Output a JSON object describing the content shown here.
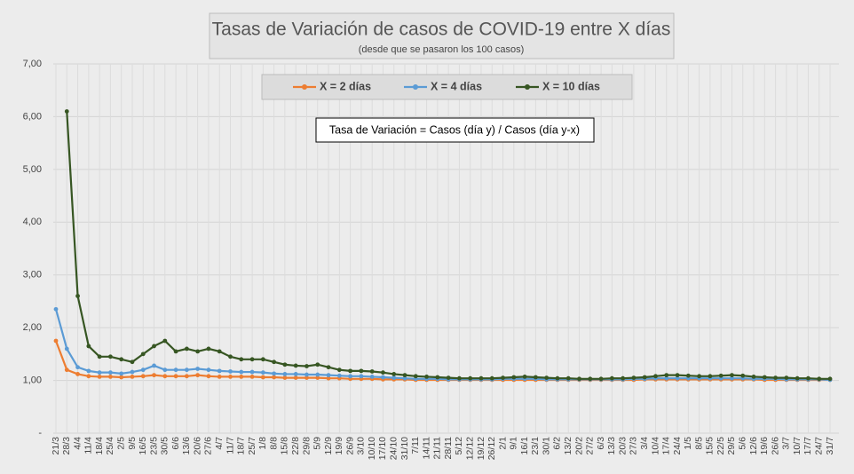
{
  "chart_data": {
    "type": "line",
    "title": "Tasas de Variación de casos de COVID-19 entre X días",
    "subtitle": "(desde que se pasaron los 100 casos)",
    "annotation": "Tasa de Variación = Casos (día y) / Casos (día y-x)",
    "categories": [
      "21/3",
      "28/3",
      "4/4",
      "11/4",
      "18/4",
      "25/4",
      "2/5",
      "9/5",
      "16/5",
      "23/5",
      "30/5",
      "6/6",
      "13/6",
      "20/6",
      "27/6",
      "4/7",
      "11/7",
      "18/7",
      "25/7",
      "1/8",
      "8/8",
      "15/8",
      "22/8",
      "29/8",
      "5/9",
      "12/9",
      "19/9",
      "26/9",
      "3/10",
      "10/10",
      "17/10",
      "24/10",
      "31/10",
      "7/11",
      "14/11",
      "21/11",
      "28/11",
      "5/12",
      "12/12",
      "19/12",
      "26/12",
      "2/1",
      "9/1",
      "16/1",
      "23/1",
      "30/1",
      "6/2",
      "13/2",
      "20/2",
      "27/2",
      "6/3",
      "13/3",
      "20/3",
      "27/3",
      "3/4",
      "10/4",
      "17/4",
      "24/4",
      "1/5",
      "8/5",
      "15/5",
      "22/5",
      "29/5",
      "5/6",
      "12/6",
      "19/6",
      "26/6",
      "3/7",
      "10/7",
      "17/7",
      "24/7",
      "31/7"
    ],
    "series": [
      {
        "name": "X = 2 días",
        "color": "#ed7d31",
        "values": [
          1.75,
          1.2,
          1.12,
          1.08,
          1.07,
          1.07,
          1.06,
          1.07,
          1.08,
          1.1,
          1.08,
          1.08,
          1.08,
          1.1,
          1.08,
          1.07,
          1.07,
          1.07,
          1.07,
          1.06,
          1.06,
          1.05,
          1.05,
          1.05,
          1.05,
          1.04,
          1.04,
          1.03,
          1.03,
          1.03,
          1.02,
          1.02,
          1.02,
          1.01,
          1.01,
          1.01,
          1.01,
          1.01,
          1.01,
          1.01,
          1.01,
          1.01,
          1.01,
          1.01,
          1.01,
          1.01,
          1.01,
          1.01,
          1.01,
          1.01,
          1.01,
          1.01,
          1.01,
          1.01,
          1.02,
          1.02,
          1.02,
          1.02,
          1.02,
          1.02,
          1.02,
          1.02,
          1.02,
          1.02,
          1.02,
          1.01,
          1.01,
          1.01,
          1.01,
          1.01,
          1.01,
          1.01
        ]
      },
      {
        "name": "X = 4 días",
        "color": "#5b9bd5",
        "values": [
          2.35,
          1.6,
          1.25,
          1.18,
          1.15,
          1.15,
          1.13,
          1.16,
          1.2,
          1.28,
          1.2,
          1.2,
          1.2,
          1.22,
          1.2,
          1.18,
          1.17,
          1.16,
          1.16,
          1.15,
          1.13,
          1.12,
          1.12,
          1.11,
          1.11,
          1.1,
          1.09,
          1.08,
          1.08,
          1.07,
          1.06,
          1.05,
          1.04,
          1.03,
          1.03,
          1.03,
          1.02,
          1.02,
          1.02,
          1.02,
          1.02,
          1.03,
          1.03,
          1.03,
          1.03,
          1.02,
          1.02,
          1.02,
          1.02,
          1.02,
          1.02,
          1.02,
          1.02,
          1.03,
          1.03,
          1.04,
          1.04,
          1.04,
          1.04,
          1.04,
          1.04,
          1.04,
          1.04,
          1.04,
          1.03,
          1.03,
          1.03,
          1.02,
          1.02,
          1.02,
          1.02,
          1.01
        ]
      },
      {
        "name": "X = 10 días",
        "color": "#375623",
        "values": [
          null,
          6.1,
          2.6,
          1.65,
          1.45,
          1.45,
          1.4,
          1.35,
          1.5,
          1.65,
          1.75,
          1.55,
          1.6,
          1.55,
          1.6,
          1.55,
          1.45,
          1.4,
          1.4,
          1.4,
          1.35,
          1.3,
          1.28,
          1.27,
          1.3,
          1.25,
          1.2,
          1.18,
          1.18,
          1.17,
          1.15,
          1.12,
          1.1,
          1.08,
          1.07,
          1.06,
          1.05,
          1.04,
          1.04,
          1.04,
          1.04,
          1.05,
          1.06,
          1.07,
          1.06,
          1.05,
          1.04,
          1.04,
          1.03,
          1.03,
          1.03,
          1.04,
          1.04,
          1.05,
          1.06,
          1.08,
          1.1,
          1.1,
          1.09,
          1.08,
          1.08,
          1.09,
          1.1,
          1.09,
          1.07,
          1.06,
          1.05,
          1.05,
          1.04,
          1.04,
          1.03,
          1.03
        ]
      }
    ],
    "ylim": [
      0,
      7
    ],
    "yticks": [
      {
        "value": 0,
        "label": "-"
      },
      {
        "value": 1,
        "label": "1,00"
      },
      {
        "value": 2,
        "label": "2,00"
      },
      {
        "value": 3,
        "label": "3,00"
      },
      {
        "value": 4,
        "label": "4,00"
      },
      {
        "value": 5,
        "label": "5,00"
      },
      {
        "value": 6,
        "label": "6,00"
      },
      {
        "value": 7,
        "label": "7,00"
      }
    ],
    "grid": true,
    "legend": "top"
  }
}
